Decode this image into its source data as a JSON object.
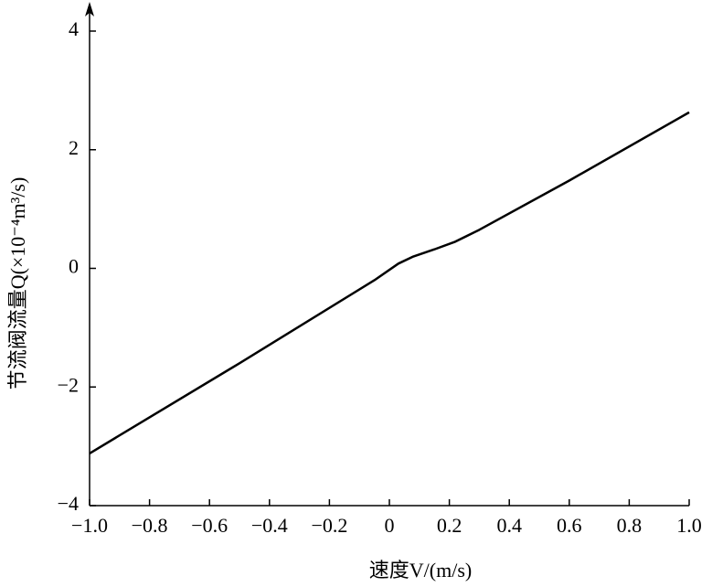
{
  "chart_data": {
    "type": "line",
    "x_label": "速度V/(m/s)",
    "y_label": "节流阀流量Q(×10⁻⁴m³/s)",
    "x": [
      -1.0,
      -0.5,
      -0.05,
      0.03,
      0.08,
      0.15,
      0.22,
      0.3,
      0.6,
      1.0
    ],
    "series": [
      {
        "color": "#000000",
        "values": [
          -3.12,
          -1.6,
          -0.2,
          0.08,
          0.2,
          0.32,
          0.45,
          0.65,
          1.48,
          2.63
        ]
      }
    ],
    "xlim": [
      -1.0,
      1.0
    ],
    "xticks": [
      {
        "value": -1.0,
        "label": "−1.0"
      },
      {
        "value": -0.8,
        "label": "−0.8"
      },
      {
        "value": -0.6,
        "label": "−0.6"
      },
      {
        "value": -0.4,
        "label": "−0.4"
      },
      {
        "value": -0.2,
        "label": "−0.2"
      },
      0,
      0.2,
      0.4,
      0.6,
      0.8,
      {
        "value": 1.0,
        "label": "1.0"
      }
    ],
    "ylim": [
      -4,
      4
    ],
    "yticks": [
      {
        "value": -4,
        "label": "−4"
      },
      {
        "value": -2,
        "label": "−2"
      },
      0,
      2,
      4
    ],
    "grid": false
  }
}
